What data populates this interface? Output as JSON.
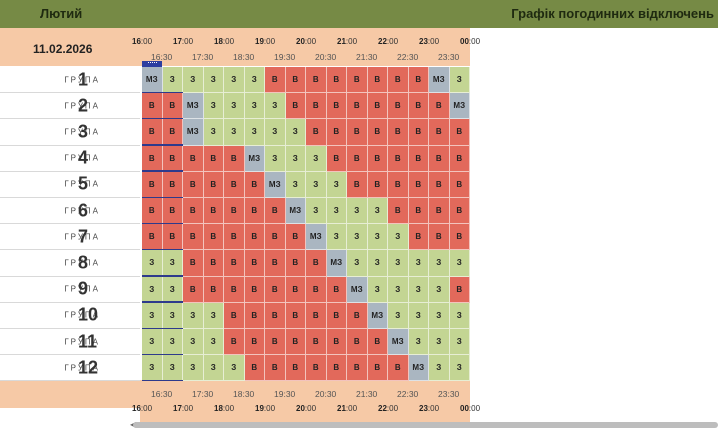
{
  "header": {
    "month": "Лютий",
    "title": "Графік погодинних відключень"
  },
  "date": "11.02.2026",
  "hours": [
    {
      "h": "16",
      "m": ":00"
    },
    {
      "h": "17",
      "m": ":00"
    },
    {
      "h": "18",
      "m": ":00"
    },
    {
      "h": "19",
      "m": ":00"
    },
    {
      "h": "20",
      "m": ":00"
    },
    {
      "h": "21",
      "m": ":00"
    },
    {
      "h": "22",
      "m": ":00"
    },
    {
      "h": "23",
      "m": ":00"
    },
    {
      "h": "00",
      "m": ":00"
    }
  ],
  "half_hours": [
    "16:30",
    "17:30",
    "18:30",
    "19:30",
    "20:30",
    "21:30",
    "22:30",
    "23:30"
  ],
  "group_word": "ГРУПА",
  "groups": [
    {
      "num": "1",
      "cells": [
        "МЗ",
        "З",
        "З",
        "З",
        "З",
        "З",
        "В",
        "В",
        "В",
        "В",
        "В",
        "В",
        "В",
        "В",
        "МЗ",
        "З"
      ]
    },
    {
      "num": "2",
      "cells": [
        "В",
        "В",
        "МЗ",
        "З",
        "З",
        "З",
        "З",
        "В",
        "В",
        "В",
        "В",
        "В",
        "В",
        "В",
        "В",
        "МЗ"
      ]
    },
    {
      "num": "3",
      "cells": [
        "В",
        "В",
        "МЗ",
        "З",
        "З",
        "З",
        "З",
        "З",
        "В",
        "В",
        "В",
        "В",
        "В",
        "В",
        "В",
        "В"
      ]
    },
    {
      "num": "4",
      "cells": [
        "В",
        "В",
        "В",
        "В",
        "В",
        "МЗ",
        "З",
        "З",
        "З",
        "В",
        "В",
        "В",
        "В",
        "В",
        "В",
        "В"
      ]
    },
    {
      "num": "5",
      "cells": [
        "В",
        "В",
        "В",
        "В",
        "В",
        "В",
        "МЗ",
        "З",
        "З",
        "З",
        "В",
        "В",
        "В",
        "В",
        "В",
        "В"
      ]
    },
    {
      "num": "6",
      "cells": [
        "В",
        "В",
        "В",
        "В",
        "В",
        "В",
        "В",
        "МЗ",
        "З",
        "З",
        "З",
        "З",
        "В",
        "В",
        "В",
        "В"
      ]
    },
    {
      "num": "7",
      "cells": [
        "В",
        "В",
        "В",
        "В",
        "В",
        "В",
        "В",
        "В",
        "МЗ",
        "З",
        "З",
        "З",
        "З",
        "В",
        "В",
        "В"
      ]
    },
    {
      "num": "8",
      "cells": [
        "З",
        "З",
        "В",
        "В",
        "В",
        "В",
        "В",
        "В",
        "В",
        "МЗ",
        "З",
        "З",
        "З",
        "З",
        "З",
        "З"
      ]
    },
    {
      "num": "9",
      "cells": [
        "З",
        "З",
        "В",
        "В",
        "В",
        "В",
        "В",
        "В",
        "В",
        "В",
        "МЗ",
        "З",
        "З",
        "З",
        "З",
        "В"
      ]
    },
    {
      "num": "10",
      "cells": [
        "З",
        "З",
        "З",
        "З",
        "В",
        "В",
        "В",
        "В",
        "В",
        "В",
        "В",
        "МЗ",
        "З",
        "З",
        "З",
        "З"
      ]
    },
    {
      "num": "11",
      "cells": [
        "З",
        "З",
        "З",
        "З",
        "В",
        "В",
        "В",
        "В",
        "В",
        "В",
        "В",
        "В",
        "МЗ",
        "З",
        "З",
        "З"
      ]
    },
    {
      "num": "12",
      "cells": [
        "З",
        "З",
        "З",
        "З",
        "З",
        "В",
        "В",
        "В",
        "В",
        "В",
        "В",
        "В",
        "В",
        "МЗ",
        "З",
        "З"
      ]
    }
  ],
  "colors": {
    "off": "#e2695b",
    "on": "#c3d593",
    "maybe": "#aab6c1",
    "header": "#768a45",
    "peach": "#f6c9a6"
  }
}
